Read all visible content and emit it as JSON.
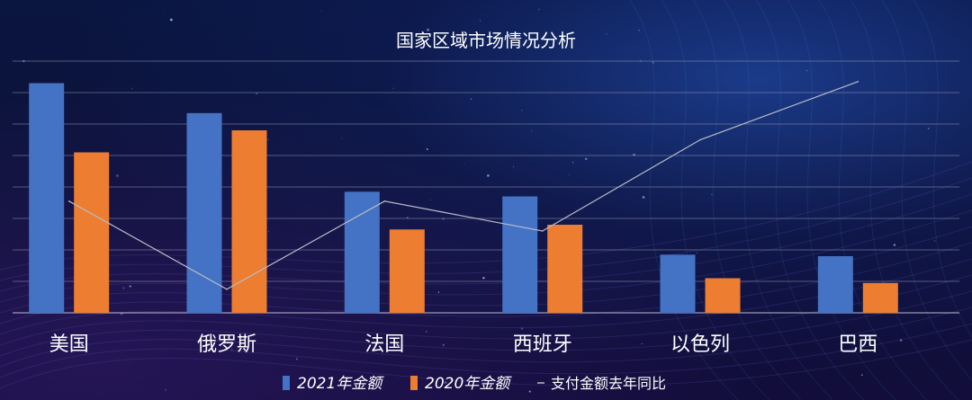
{
  "chart_data": {
    "type": "bar",
    "title": "国家区域市场情况分析",
    "categories": [
      "美国",
      "俄罗斯",
      "法国",
      "西班牙",
      "以色列",
      "巴西"
    ],
    "series": [
      {
        "name": "2021年金额",
        "kind": "bar",
        "color": "#4472c4",
        "values": [
          7.3,
          6.35,
          3.85,
          3.7,
          1.85,
          1.8
        ]
      },
      {
        "name": "2020年金额",
        "kind": "bar",
        "color": "#ed7d31",
        "values": [
          5.1,
          5.8,
          2.65,
          2.8,
          1.1,
          0.95
        ]
      },
      {
        "name": "支付金额去年同比",
        "kind": "line",
        "color": "#b8bcc8",
        "values": [
          3.55,
          0.75,
          3.55,
          2.6,
          5.5,
          7.35
        ]
      }
    ],
    "ylim": [
      0,
      8
    ],
    "grid": true,
    "legend_position": "bottom"
  }
}
